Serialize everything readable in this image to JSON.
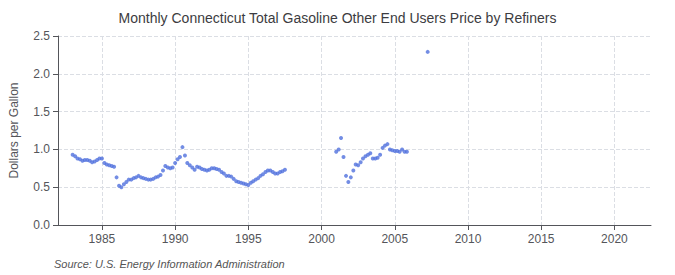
{
  "chart_data": {
    "type": "scatter",
    "title": "Monthly Connecticut Total Gasoline Other End Users Price by Refiners",
    "ylabel": "Dollars per Gallon",
    "annotation": "Source: U.S. Energy Information Administration",
    "xlim": [
      1982.0,
      2022.5
    ],
    "xticks": [
      1985,
      1990,
      1995,
      2000,
      2005,
      2010,
      2015,
      2020
    ],
    "ylim": [
      0.0,
      2.5
    ],
    "yticks": [
      {
        "value": 0.0,
        "label": "0.0"
      },
      0.5,
      {
        "value": 1.0,
        "label": "1.0"
      },
      1.5,
      {
        "value": 2.0,
        "label": "2.0"
      },
      2.5
    ],
    "grid": true,
    "x": [
      1983.0,
      1983.17,
      1983.33,
      1983.5,
      1983.67,
      1983.83,
      1984.0,
      1984.17,
      1984.33,
      1984.5,
      1984.67,
      1984.83,
      1985.0,
      1985.17,
      1985.33,
      1985.5,
      1985.67,
      1985.83,
      1986.0,
      1986.17,
      1986.33,
      1986.5,
      1986.67,
      1986.83,
      1987.0,
      1987.17,
      1987.33,
      1987.5,
      1987.67,
      1987.83,
      1988.0,
      1988.17,
      1988.33,
      1988.5,
      1988.67,
      1988.83,
      1989.0,
      1989.17,
      1989.33,
      1989.5,
      1989.67,
      1989.83,
      1990.0,
      1990.17,
      1990.33,
      1990.5,
      1990.67,
      1990.83,
      1991.0,
      1991.17,
      1991.33,
      1991.5,
      1991.67,
      1991.83,
      1992.0,
      1992.17,
      1992.33,
      1992.5,
      1992.67,
      1992.83,
      1993.0,
      1993.17,
      1993.33,
      1993.5,
      1993.67,
      1993.83,
      1994.0,
      1994.17,
      1994.33,
      1994.5,
      1994.67,
      1994.83,
      1995.0,
      1995.17,
      1995.33,
      1995.5,
      1995.67,
      1995.83,
      1996.0,
      1996.17,
      1996.33,
      1996.5,
      1996.67,
      1996.83,
      1997.0,
      1997.17,
      1997.33,
      1997.5,
      2001.0,
      2001.17,
      2001.33,
      2001.5,
      2001.67,
      2001.83,
      2002.0,
      2002.17,
      2002.33,
      2002.5,
      2002.67,
      2002.83,
      2003.0,
      2003.17,
      2003.33,
      2003.5,
      2003.67,
      2003.83,
      2004.0,
      2004.17,
      2004.33,
      2004.5,
      2004.67,
      2004.83,
      2005.0,
      2005.17,
      2005.33,
      2005.5,
      2005.67,
      2005.83,
      2007.25
    ],
    "values": [
      0.93,
      0.91,
      0.88,
      0.87,
      0.85,
      0.86,
      0.86,
      0.85,
      0.83,
      0.84,
      0.86,
      0.88,
      0.88,
      0.82,
      0.8,
      0.79,
      0.78,
      0.77,
      0.63,
      0.52,
      0.5,
      0.54,
      0.57,
      0.6,
      0.6,
      0.62,
      0.63,
      0.65,
      0.63,
      0.62,
      0.61,
      0.6,
      0.6,
      0.61,
      0.63,
      0.64,
      0.66,
      0.72,
      0.78,
      0.76,
      0.75,
      0.76,
      0.82,
      0.87,
      0.9,
      1.03,
      0.92,
      0.82,
      0.79,
      0.76,
      0.73,
      0.77,
      0.76,
      0.74,
      0.73,
      0.72,
      0.73,
      0.75,
      0.75,
      0.74,
      0.73,
      0.7,
      0.68,
      0.65,
      0.65,
      0.64,
      0.61,
      0.58,
      0.57,
      0.56,
      0.55,
      0.54,
      0.53,
      0.56,
      0.58,
      0.6,
      0.62,
      0.65,
      0.67,
      0.7,
      0.72,
      0.72,
      0.7,
      0.68,
      0.68,
      0.7,
      0.71,
      0.73,
      0.97,
      1.0,
      1.15,
      0.9,
      0.65,
      0.57,
      0.63,
      0.72,
      0.8,
      0.79,
      0.83,
      0.88,
      0.91,
      0.93,
      0.95,
      0.88,
      0.88,
      0.89,
      0.93,
      1.02,
      1.05,
      1.07,
      1.0,
      0.99,
      0.98,
      0.98,
      0.97,
      1.0,
      0.97,
      0.97,
      2.29
    ]
  }
}
